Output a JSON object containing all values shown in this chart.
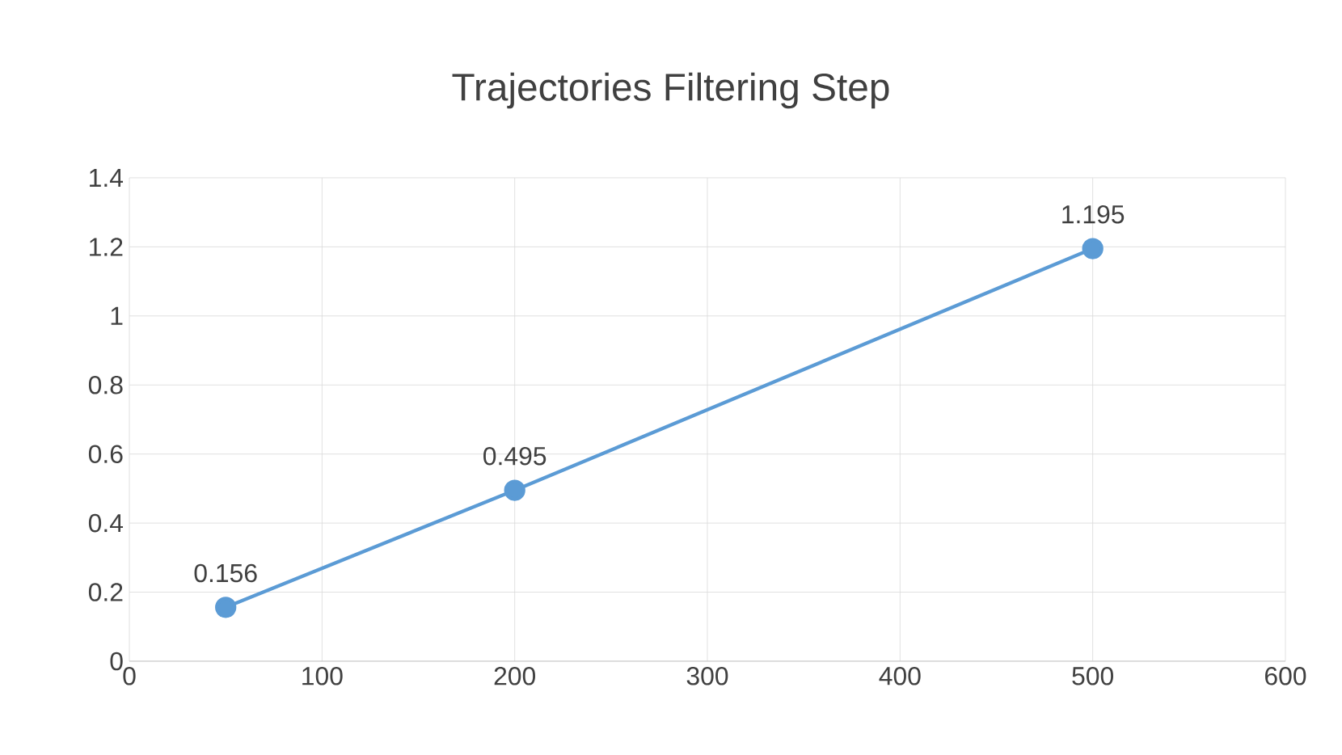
{
  "chart_data": {
    "type": "line",
    "title": "Trajectories Filtering Step",
    "x": [
      50,
      200,
      500
    ],
    "series": [
      {
        "color": "#5b9bd5",
        "values": [
          0.156,
          0.495,
          1.195
        ]
      }
    ],
    "xlim": [
      0,
      600
    ],
    "xticks": [
      0,
      100,
      200,
      300,
      400,
      500,
      600
    ],
    "ylim": [
      0,
      1.4
    ],
    "yticks": [
      0,
      0.2,
      0.4,
      0.6,
      0.8,
      1,
      1.2,
      1.4
    ],
    "grid": true,
    "data_labels": true,
    "marker": "circle",
    "line_style": "solid",
    "legend": false
  }
}
